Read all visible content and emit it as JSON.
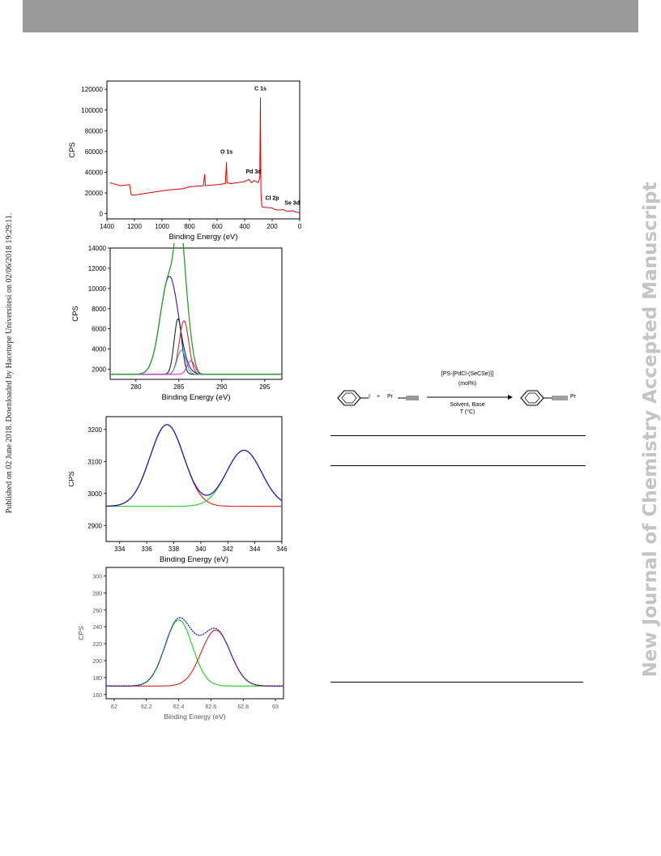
{
  "header": {
    "bar_color": "#999999"
  },
  "sidebar_left": {
    "text": "Published on 02 June 2018. Downloaded by Hacettepe Universitesi on 02/06/2018 19:29:11."
  },
  "sidebar_right": {
    "text": "New Journal of Chemistry Accepted Manuscript"
  },
  "reaction": {
    "catalyst": "[PS-{PdCl-(SeCSe)}]",
    "loading": "(mol%)",
    "conditions": "Solvent, Base",
    "temperature": "T (°C)",
    "reactant_sub": "I",
    "plus": "+",
    "alkyne_sub": "Pr",
    "product_sub": "Pr"
  },
  "chart_data": [
    {
      "type": "line",
      "title": "",
      "xlabel": "Binding Energy (eV)",
      "ylabel": "CPS",
      "xlim": [
        1400,
        0
      ],
      "ylim": [
        -5000,
        128000
      ],
      "x_reversed": true,
      "xticks": [
        "1400",
        "1200",
        "1000",
        "800",
        "600",
        "400",
        "200",
        "0"
      ],
      "yticks": [
        "0",
        "20000",
        "40000",
        "60000",
        "80000",
        "100000",
        "120000"
      ],
      "color": "#dd0000",
      "series": [
        {
          "x": [
            1380,
            1300,
            1235,
            1225,
            1215,
            1200,
            1100,
            1000,
            950,
            850,
            800,
            700,
            690,
            685,
            650,
            600,
            540,
            532,
            528,
            500,
            450,
            400,
            370,
            350,
            330,
            300,
            290,
            285,
            282,
            275,
            270,
            260,
            250,
            200,
            180,
            150,
            120,
            100,
            60,
            50,
            30,
            10,
            0
          ],
          "y": [
            30000,
            27000,
            28000,
            18500,
            18000,
            18000,
            20000,
            22000,
            23000,
            24000,
            26000,
            27000,
            38000,
            27000,
            27500,
            28000,
            29000,
            50000,
            30000,
            29000,
            30000,
            31000,
            33000,
            30000,
            32000,
            30000,
            35000,
            112000,
            20000,
            7000,
            6500,
            6000,
            6000,
            5500,
            4000,
            3500,
            4000,
            2500,
            2500,
            3000,
            1500,
            1000,
            1000
          ]
        }
      ],
      "annotations": [
        {
          "text": "C 1s",
          "x": 285,
          "y": 119000
        },
        {
          "text": "O 1s",
          "x": 532,
          "y": 58000
        },
        {
          "text": "Pd 3d",
          "x": 335,
          "y": 39000
        },
        {
          "text": "Cl 2p",
          "x": 200,
          "y": 13500
        },
        {
          "text": "Se 3d",
          "x": 55,
          "y": 8500
        }
      ]
    },
    {
      "type": "line",
      "title": "",
      "xlabel": "Binding Energy (eV)",
      "ylabel": "CPS",
      "xlim": [
        277,
        297
      ],
      "ylim": [
        1000,
        14000
      ],
      "xticks": [
        "280",
        "285",
        "290",
        "295"
      ],
      "yticks": [
        "2000",
        "4000",
        "6000",
        "8000",
        "10000",
        "12000",
        "14000"
      ],
      "baseline": 1500,
      "components": [
        {
          "name": "",
          "color": "#2020b0",
          "center": 283.9,
          "amplitude": 9700,
          "sigma": 1.05
        },
        {
          "name": "",
          "color": "#202020",
          "center": 284.9,
          "amplitude": 5500,
          "sigma": 0.45
        },
        {
          "name": "",
          "color": "#c03030",
          "center": 285.6,
          "amplitude": 5300,
          "sigma": 0.55
        },
        {
          "name": "",
          "color": "#40a0b0",
          "center": 285.3,
          "amplitude": 2400,
          "sigma": 0.5
        },
        {
          "name": "",
          "color": "#d030d0",
          "center": 286.4,
          "amplitude": 1350,
          "sigma": 0.45
        }
      ],
      "envelope_color": "#2e9a2e"
    },
    {
      "type": "line",
      "title": "",
      "xlabel": "Binding Energy (eV)",
      "ylabel": "CPS",
      "xlim": [
        333,
        346
      ],
      "ylim": [
        2850,
        3240
      ],
      "xticks": [
        "334",
        "336",
        "338",
        "340",
        "342",
        "344",
        "346"
      ],
      "yticks": [
        "2900",
        "3000",
        "3100",
        "3200"
      ],
      "baseline": 2960,
      "components": [
        {
          "name": "",
          "color": "#dd2020",
          "center": 337.5,
          "amplitude": 255,
          "sigma": 1.25
        },
        {
          "name": "",
          "color": "#20cc20",
          "center": 343.2,
          "amplitude": 175,
          "sigma": 1.3
        }
      ],
      "envelope_color": "#2020aa"
    },
    {
      "type": "line",
      "title": "",
      "xlabel": "Binding Energy (eV)",
      "ylabel": "CPS",
      "xlim": [
        61.95,
        63.05
      ],
      "ylim": [
        155,
        310
      ],
      "xticks": [
        "62",
        "62.2",
        "62.4",
        "62.6",
        "62.8",
        "63"
      ],
      "yticks": [
        "160",
        "180",
        "200",
        "220",
        "240",
        "260",
        "280",
        "300"
      ],
      "baseline": 170,
      "components": [
        {
          "name": "",
          "color": "#20cc20",
          "center": 62.4,
          "amplitude": 78,
          "sigma": 0.085
        },
        {
          "name": "",
          "color": "#dd2020",
          "center": 62.63,
          "amplitude": 66,
          "sigma": 0.09
        }
      ],
      "envelope_color": "#2020aa"
    }
  ]
}
